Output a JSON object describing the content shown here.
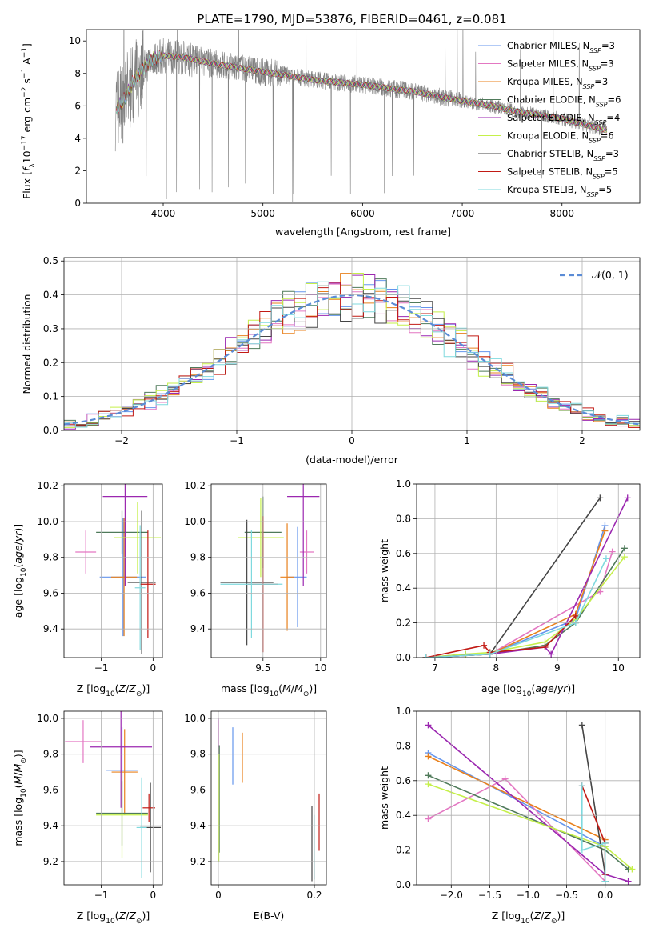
{
  "figure_title": "PLATE=1790, MJD=53876, FIBERID=0461, z=0.081",
  "palette": [
    "#6495ED",
    "#E377C2",
    "#E8801C",
    "#4F7A5A",
    "#9B27B0",
    "#C5F04A",
    "#454545",
    "#C21A14",
    "#7FD9DE"
  ],
  "legend_labels": [
    "Chabrier MILES, N_SSP=3",
    "Salpeter MILES, N_SSP=3",
    "Kroupa MILES, N_SSP=3",
    "Chabrier ELODIE, N_SSP=6",
    "Salpeter ELODIE, N_SSP=4",
    "Kroupa ELODIE, N_SSP=6",
    "Chabrier STELIB, N_SSP=3",
    "Salpeter STELIB, N_SSP=5",
    "Kroupa STELIB, N_SSP=5"
  ],
  "chart_data": [
    {
      "id": "spectrum",
      "type": "line",
      "title": "PLATE=1790, MJD=53876, FIBERID=0461, z=0.081",
      "xlabel": "wavelength [Angstrom, rest frame]",
      "ylabel": "Flux [f_λ 10^-17 erg cm^-2 s^-1 A^-1]",
      "xlim": [
        3230,
        8780
      ],
      "ylim": [
        0,
        10.7
      ],
      "xticks": [
        4000,
        5000,
        6000,
        7000,
        8000
      ],
      "yticks": [
        0,
        2,
        4,
        6,
        8,
        10
      ],
      "data_color": "#808080",
      "continuum": [
        [
          3520,
          5.8
        ],
        [
          3600,
          6.3
        ],
        [
          3700,
          7.5
        ],
        [
          3800,
          8.3
        ],
        [
          3900,
          8.9
        ],
        [
          4000,
          9.1
        ],
        [
          4200,
          9.0
        ],
        [
          4500,
          8.6
        ],
        [
          5000,
          8.1
        ],
        [
          5500,
          7.6
        ],
        [
          6000,
          7.3
        ],
        [
          6500,
          6.9
        ],
        [
          7000,
          6.3
        ],
        [
          7300,
          6.0
        ],
        [
          7500,
          5.7
        ],
        [
          8000,
          5.2
        ],
        [
          8450,
          4.5
        ]
      ],
      "legend": "upper right"
    },
    {
      "id": "residuals",
      "type": "line",
      "xlabel": "(data-model)/error",
      "ylabel": "Normed distribution",
      "xlim": [
        -2.5,
        2.5
      ],
      "ylim": [
        0,
        0.51
      ],
      "xticks": [
        -2,
        -1,
        0,
        1,
        2
      ],
      "yticks": [
        0.0,
        0.1,
        0.2,
        0.3,
        0.4,
        0.5
      ],
      "gaussian_label": "N(0,1)",
      "gaussian_color": "#5B8CD6",
      "bin_width": 0.1,
      "legend": "upper right"
    },
    {
      "id": "age_vs_Z",
      "type": "scatter",
      "xlabel": "Z [log10(Z/Z☉)]",
      "ylabel": "age [log10(age/yr)]",
      "xlim": [
        -1.72,
        0.18
      ],
      "ylim": [
        9.24,
        10.21
      ],
      "xticks": [
        -1,
        0
      ],
      "yticks": [
        9.4,
        9.6,
        9.8,
        10.0,
        10.2
      ],
      "points": [
        {
          "c": 0,
          "x": -0.58,
          "y": 9.69,
          "ex": 0.45,
          "ey": 0.33
        },
        {
          "c": 1,
          "x": -1.3,
          "y": 9.83,
          "ex": 0.2,
          "ey": 0.12
        },
        {
          "c": 2,
          "x": -0.56,
          "y": 9.69,
          "ex": 0.25,
          "ey": 0.33
        },
        {
          "c": 3,
          "x": -0.6,
          "y": 9.94,
          "ex": 0.5,
          "ey": 0.12
        },
        {
          "c": 4,
          "x": -0.54,
          "y": 10.14,
          "ex": 0.43,
          "ey": 0.5
        },
        {
          "c": 5,
          "x": -0.3,
          "y": 9.91,
          "ex": 0.45,
          "ey": 0.2
        },
        {
          "c": 6,
          "x": -0.22,
          "y": 9.66,
          "ex": 0.27,
          "ey": 0.4
        },
        {
          "c": 7,
          "x": -0.1,
          "y": 9.65,
          "ex": 0.15,
          "ey": 0.3
        },
        {
          "c": 8,
          "x": -0.25,
          "y": 9.63,
          "ex": 0.1,
          "ey": 0.35
        }
      ]
    },
    {
      "id": "age_vs_mass",
      "type": "scatter",
      "xlabel": "mass [log10(M/M☉)]",
      "ylabel": "",
      "xlim": [
        9.05,
        10.05
      ],
      "ylim": [
        9.24,
        10.21
      ],
      "xticks": [
        9.5,
        10.0
      ],
      "yticks": [
        9.4,
        9.6,
        9.8,
        10.0,
        10.2
      ],
      "points": [
        {
          "c": 0,
          "x": 9.8,
          "y": 9.69,
          "ex": 0.08,
          "ey": 0.28
        },
        {
          "c": 1,
          "x": 9.88,
          "y": 9.83,
          "ex": 0.06,
          "ey": 0.12
        },
        {
          "c": 2,
          "x": 9.71,
          "y": 9.69,
          "ex": 0.06,
          "ey": 0.3
        },
        {
          "c": 3,
          "x": 9.5,
          "y": 9.94,
          "ex": 0.16,
          "ey": 0.2
        },
        {
          "c": 4,
          "x": 9.85,
          "y": 10.14,
          "ex": 0.14,
          "ey": 0.5
        },
        {
          "c": 5,
          "x": 9.48,
          "y": 9.91,
          "ex": 0.2,
          "ey": 0.22
        },
        {
          "c": 6,
          "x": 9.36,
          "y": 9.66,
          "ex": 0.23,
          "ey": 0.35
        },
        {
          "c": 7,
          "x": 9.5,
          "y": 9.65,
          "ex": 0.13,
          "ey": 0.38
        },
        {
          "c": 8,
          "x": 9.4,
          "y": 9.65,
          "ex": 0.27,
          "ey": 0.3
        }
      ]
    },
    {
      "id": "weight_vs_age",
      "type": "line",
      "xlabel": "age [log10(age/yr)]",
      "ylabel": "mass weight",
      "xlim": [
        6.7,
        10.35
      ],
      "ylim": [
        0,
        1.0
      ],
      "xticks": [
        7,
        8,
        9,
        10
      ],
      "yticks": [
        0.0,
        0.2,
        0.4,
        0.6,
        0.8,
        1.0
      ],
      "series": [
        {
          "c": 0,
          "x": [
            6.85,
            7.9,
            9.3,
            9.78
          ],
          "y": [
            0.0,
            0.02,
            0.22,
            0.76
          ]
        },
        {
          "c": 1,
          "x": [
            6.85,
            7.9,
            9.7,
            9.9
          ],
          "y": [
            0.0,
            0.02,
            0.38,
            0.61
          ]
        },
        {
          "c": 2,
          "x": [
            6.85,
            7.9,
            9.3,
            9.78
          ],
          "y": [
            0.0,
            0.02,
            0.25,
            0.73
          ]
        },
        {
          "c": 3,
          "x": [
            6.85,
            7.5,
            7.9,
            8.8,
            9.3,
            10.1
          ],
          "y": [
            0.0,
            0.02,
            0.02,
            0.07,
            0.2,
            0.63
          ]
        },
        {
          "c": 4,
          "x": [
            6.85,
            7.9,
            8.8,
            8.9,
            10.15
          ],
          "y": [
            0.0,
            0.02,
            0.06,
            0.02,
            0.92
          ]
        },
        {
          "c": 5,
          "x": [
            6.85,
            7.5,
            7.9,
            8.8,
            9.3,
            10.1
          ],
          "y": [
            0.0,
            0.02,
            0.03,
            0.09,
            0.22,
            0.58
          ]
        },
        {
          "c": 6,
          "x": [
            6.85,
            7.9,
            9.7
          ],
          "y": [
            0.0,
            0.02,
            0.92
          ]
        },
        {
          "c": 7,
          "x": [
            6.85,
            7.8,
            7.9,
            8.8,
            9.3
          ],
          "y": [
            0.0,
            0.07,
            0.03,
            0.06,
            0.24
          ]
        },
        {
          "c": 8,
          "x": [
            6.85,
            7.9,
            9.3,
            9.8
          ],
          "y": [
            0.0,
            0.02,
            0.2,
            0.57
          ]
        }
      ]
    },
    {
      "id": "mass_vs_Z",
      "type": "scatter",
      "xlabel": "Z [log10(Z/Z☉)]",
      "ylabel": "mass [log10(M/M☉)]",
      "xlim": [
        -1.72,
        0.18
      ],
      "ylim": [
        9.07,
        10.04
      ],
      "xticks": [
        -1,
        0
      ],
      "yticks": [
        9.2,
        9.4,
        9.6,
        9.8,
        10.0
      ],
      "points": [
        {
          "c": 0,
          "x": -0.6,
          "y": 9.71,
          "ex": 0.3,
          "ey": 0.24
        },
        {
          "c": 1,
          "x": -1.35,
          "y": 9.87,
          "ex": 0.35,
          "ey": 0.12
        },
        {
          "c": 2,
          "x": -0.55,
          "y": 9.7,
          "ex": 0.25,
          "ey": 0.24
        },
        {
          "c": 3,
          "x": -0.6,
          "y": 9.47,
          "ex": 0.5,
          "ey": 0.18
        },
        {
          "c": 4,
          "x": -0.62,
          "y": 9.84,
          "ex": 0.6,
          "ey": 0.34
        },
        {
          "c": 5,
          "x": -0.6,
          "y": 9.46,
          "ex": 0.5,
          "ey": 0.24
        },
        {
          "c": 6,
          "x": -0.05,
          "y": 9.39,
          "ex": 0.2,
          "ey": 0.25
        },
        {
          "c": 7,
          "x": -0.08,
          "y": 9.5,
          "ex": 0.12,
          "ey": 0.08
        },
        {
          "c": 8,
          "x": -0.22,
          "y": 9.39,
          "ex": 0.1,
          "ey": 0.28
        }
      ]
    },
    {
      "id": "mass_vs_EBV",
      "type": "scatter",
      "xlabel": "E(B-V)",
      "ylabel": "",
      "xlim": [
        -0.015,
        0.225
      ],
      "ylim": [
        9.07,
        10.04
      ],
      "xticks": [
        0.0,
        0.2
      ],
      "yticks": [
        9.2,
        9.4,
        9.6,
        9.8,
        10.0
      ],
      "points": [
        {
          "c": 0,
          "x": 0.03,
          "y": 9.79,
          "ex": 0,
          "ey": 0.16
        },
        {
          "c": 1,
          "x": 0.0,
          "y": 9.87,
          "ex": 0,
          "ey": 0.12
        },
        {
          "c": 2,
          "x": 0.05,
          "y": 9.78,
          "ex": 0,
          "ey": 0.14
        },
        {
          "c": 3,
          "x": 0.002,
          "y": 9.55,
          "ex": 0,
          "ey": 0.3
        },
        {
          "c": 4,
          "x": 0.0,
          "y": 9.92,
          "ex": 0,
          "ey": 0.08
        },
        {
          "c": 5,
          "x": 0.001,
          "y": 9.5,
          "ex": 0,
          "ey": 0.3
        },
        {
          "c": 6,
          "x": 0.195,
          "y": 9.3,
          "ex": 0,
          "ey": 0.21
        },
        {
          "c": 7,
          "x": 0.21,
          "y": 9.42,
          "ex": 0,
          "ey": 0.16
        },
        {
          "c": 8,
          "x": 0.2,
          "y": 9.28,
          "ex": 0,
          "ey": 0.18
        }
      ]
    },
    {
      "id": "weight_vs_Z",
      "type": "line",
      "xlabel": "Z [log10(Z/Z☉)]",
      "ylabel": "mass weight",
      "xlim": [
        -2.45,
        0.45
      ],
      "ylim": [
        0,
        1.0
      ],
      "xticks": [
        -2.0,
        -1.5,
        -1.0,
        -0.5,
        0.0
      ],
      "yticks": [
        0.0,
        0.2,
        0.4,
        0.6,
        0.8,
        1.0
      ],
      "series": [
        {
          "c": 0,
          "x": [
            -2.3,
            0.0,
            0.0
          ],
          "y": [
            0.76,
            0.22,
            0.02
          ]
        },
        {
          "c": 1,
          "x": [
            -2.3,
            -1.3,
            0.0
          ],
          "y": [
            0.38,
            0.61,
            0.02
          ]
        },
        {
          "c": 2,
          "x": [
            -2.3,
            0.0,
            0.0
          ],
          "y": [
            0.74,
            0.26,
            0.02
          ]
        },
        {
          "c": 3,
          "x": [
            -2.3,
            0.0,
            0.3
          ],
          "y": [
            0.63,
            0.2,
            0.09
          ]
        },
        {
          "c": 4,
          "x": [
            -2.3,
            0.0,
            0.3
          ],
          "y": [
            0.92,
            0.06,
            0.02
          ]
        },
        {
          "c": 5,
          "x": [
            -2.3,
            0.0,
            0.35
          ],
          "y": [
            0.58,
            0.22,
            0.09
          ]
        },
        {
          "c": 6,
          "x": [
            -0.3,
            0.0,
            0.0
          ],
          "y": [
            0.92,
            0.06,
            0.02
          ]
        },
        {
          "c": 7,
          "x": [
            -0.3,
            0.0,
            0.0
          ],
          "y": [
            0.57,
            0.24,
            0.06
          ]
        },
        {
          "c": 8,
          "x": [
            -0.3,
            -0.3,
            0.0,
            0.0
          ],
          "y": [
            0.57,
            0.2,
            0.24,
            0.02
          ]
        }
      ]
    }
  ]
}
